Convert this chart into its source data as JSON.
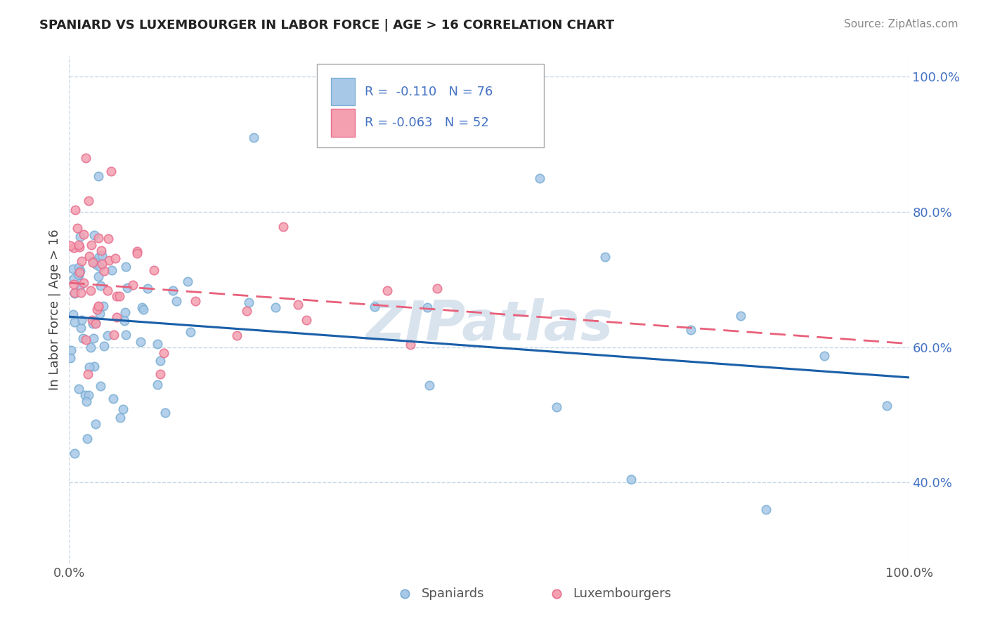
{
  "title": "SPANIARD VS LUXEMBOURGER IN LABOR FORCE | AGE > 16 CORRELATION CHART",
  "source": "Source: ZipAtlas.com",
  "ylabel": "In Labor Force | Age > 16",
  "watermark": "ZIPatlas",
  "spaniard_color": "#a8c8e8",
  "luxembourger_color": "#f4a0b0",
  "spaniard_edge_color": "#7bafd4",
  "luxembourger_edge_color": "#e87090",
  "spaniard_line_color": "#1a5fa8",
  "luxembourger_line_color": "#e8607a",
  "background_color": "#ffffff",
  "grid_color": "#c8d8e8",
  "tick_color": "#4472c4",
  "title_color": "#333333",
  "ytick_vals": [
    0.4,
    0.6,
    0.8,
    1.0
  ],
  "ytick_labels": [
    "40.0%",
    "60.0%",
    "80.0%",
    "100.0%"
  ],
  "ylim_min": 0.28,
  "ylim_max": 1.03,
  "xlim_min": 0.0,
  "xlim_max": 1.0,
  "legend_r1": "R =  -0.110",
  "legend_n1": "N = 76",
  "legend_r2": "R = -0.063",
  "legend_n2": "N = 52",
  "spaniard_trend_x0": 0.0,
  "spaniard_trend_y0": 0.645,
  "spaniard_trend_x1": 1.0,
  "spaniard_trend_y1": 0.555,
  "luxembourger_trend_x0": 0.0,
  "luxembourger_trend_y0": 0.695,
  "luxembourger_trend_x1": 1.0,
  "luxembourger_trend_y1": 0.605
}
